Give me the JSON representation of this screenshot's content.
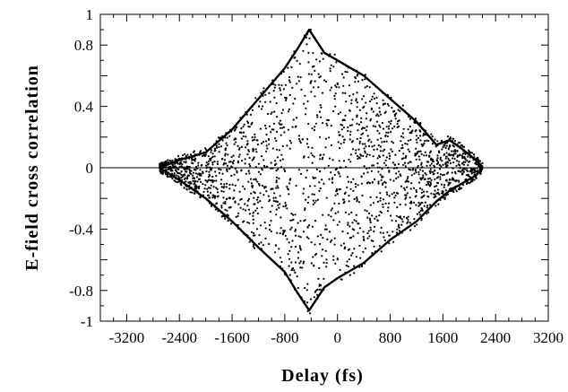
{
  "chart_data": {
    "type": "scatter",
    "xlabel": "Delay (fs)",
    "ylabel": "E-field cross correlation",
    "xlim": [
      -3600,
      3200
    ],
    "ylim": [
      -1,
      1
    ],
    "xticks": [
      -3200,
      -2400,
      -1600,
      -800,
      0,
      800,
      1600,
      2400,
      3200
    ],
    "yticks": [
      -1,
      -0.8,
      -0.4,
      0,
      0.4,
      0.8,
      1
    ],
    "xtick_labels": [
      "-3200",
      "-2400",
      "-1600",
      "-800",
      "0",
      "800",
      "1600",
      "2400",
      "3200"
    ],
    "ytick_labels": [
      "-1",
      "-0.8",
      "-0.4",
      "0",
      "0.4",
      "0.8",
      "1"
    ],
    "grid": false,
    "zero_line": true,
    "series": [
      {
        "kind": "envelope_upper",
        "style": "thick-line",
        "x": [
          -2700,
          -2400,
          -2000,
          -1600,
          -1200,
          -800,
          -600,
          -430,
          -200,
          0,
          400,
          800,
          1200,
          1500,
          1700,
          1900,
          2100,
          2200
        ],
        "y": [
          0.0,
          0.05,
          0.1,
          0.25,
          0.45,
          0.65,
          0.78,
          0.9,
          0.75,
          0.7,
          0.6,
          0.45,
          0.3,
          0.15,
          0.18,
          0.12,
          0.05,
          0.0
        ]
      },
      {
        "kind": "envelope_lower",
        "style": "thick-line",
        "x": [
          -2700,
          -2400,
          -2000,
          -1600,
          -1200,
          -800,
          -600,
          -430,
          -200,
          0,
          400,
          800,
          1200,
          1500,
          1700,
          1900,
          2100,
          2200
        ],
        "y": [
          0.0,
          -0.08,
          -0.2,
          -0.35,
          -0.52,
          -0.68,
          -0.82,
          -0.93,
          -0.78,
          -0.72,
          -0.62,
          -0.47,
          -0.35,
          -0.22,
          -0.15,
          -0.1,
          -0.05,
          0.0
        ]
      },
      {
        "kind": "scatter",
        "style": "dots",
        "points_seed": 7,
        "points_count": 2200,
        "x_range": [
          -2700,
          2200
        ]
      }
    ]
  }
}
